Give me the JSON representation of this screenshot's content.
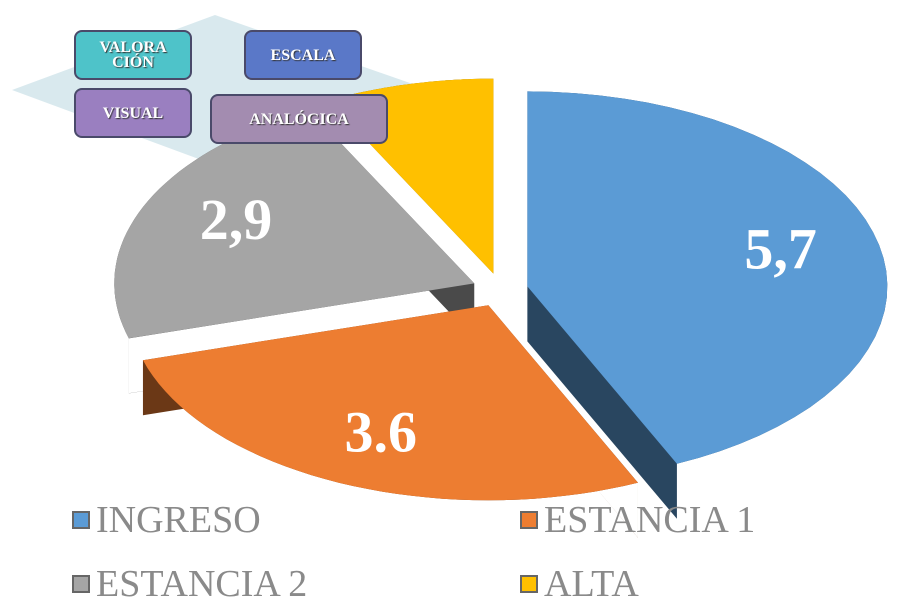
{
  "chart_data": {
    "type": "pie",
    "title_boxes": [
      "VALORACIÓN",
      "ESCALA",
      "VISUAL",
      "ANALÓGICA"
    ],
    "categories": [
      "INGRESO",
      "ESTANCIA 1",
      "ESTANCIA 2",
      "ALTA"
    ],
    "values": [
      5.7,
      3.6,
      2.9,
      1.0
    ],
    "value_labels": [
      "5,7",
      "3.6",
      "2,9",
      null
    ],
    "colors": [
      "#5b9bd5",
      "#ed7d31",
      "#a5a5a5",
      "#ffc000"
    ],
    "legend": "bottom"
  }
}
